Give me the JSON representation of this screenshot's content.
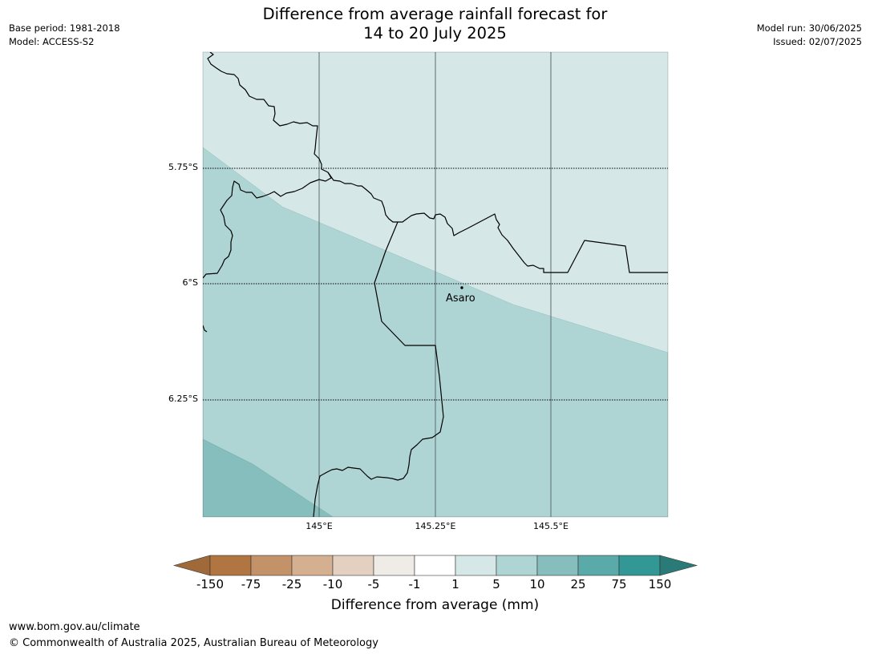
{
  "title": {
    "line1": "Difference from average rainfall forecast for",
    "line2": "14 to 20 July 2025"
  },
  "meta_left": {
    "base_period": "Base period: 1981-2018",
    "model": "Model: ACCESS-S2"
  },
  "meta_right": {
    "model_run": "Model run: 30/06/2025",
    "issued": "Issued: 02/07/2025"
  },
  "map": {
    "lat_labels": [
      "5.75°S",
      "6°S",
      "6.25°S"
    ],
    "lon_labels": [
      "145°E",
      "145.25°E",
      "145.5°E"
    ],
    "place": "Asaro"
  },
  "colorbar": {
    "ticks": [
      "-150",
      "-75",
      "-25",
      "-10",
      "-5",
      "-1",
      "1",
      "5",
      "10",
      "25",
      "75",
      "150"
    ],
    "colors": [
      "#a0693a",
      "#b07540",
      "#c39268",
      "#d4b091",
      "#e4d0c0",
      "#efebe7",
      "#ffffff",
      "#d5e8e7",
      "#afd4d4",
      "#85bebc",
      "#5aaaaa",
      "#339795",
      "#2a7a78"
    ],
    "label": "Difference from average (mm)"
  },
  "footer": {
    "url": "www.bom.gov.au/climate",
    "copyright": "© Commonwealth of Australia 2025, Australian Bureau of Meteorology"
  }
}
